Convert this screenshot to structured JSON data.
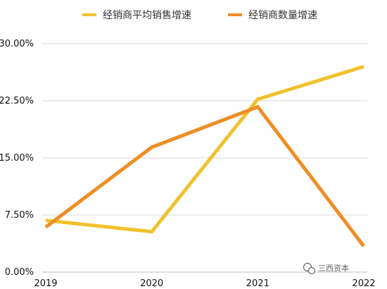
{
  "chart_data": {
    "type": "line",
    "categories": [
      "2019",
      "2020",
      "2021",
      "2022"
    ],
    "series": [
      {
        "name": "经销商平均销售增速",
        "color": "#F2C12E",
        "values": [
          6.8,
          5.3,
          22.7,
          27.0
        ]
      },
      {
        "name": "经销商数量增速",
        "color": "#EE8E24",
        "values": [
          5.9,
          16.4,
          21.7,
          3.4
        ]
      }
    ],
    "y_ticks": [
      "0.00%",
      "7.50%",
      "15.00%",
      "22.50%",
      "30.00%"
    ],
    "y_tick_values": [
      0,
      7.5,
      15,
      22.5,
      30
    ],
    "ylim": [
      0,
      30
    ],
    "grid": true,
    "legend": "top"
  },
  "watermark": {
    "text": "三西资本",
    "icon": "wechat-icon"
  }
}
